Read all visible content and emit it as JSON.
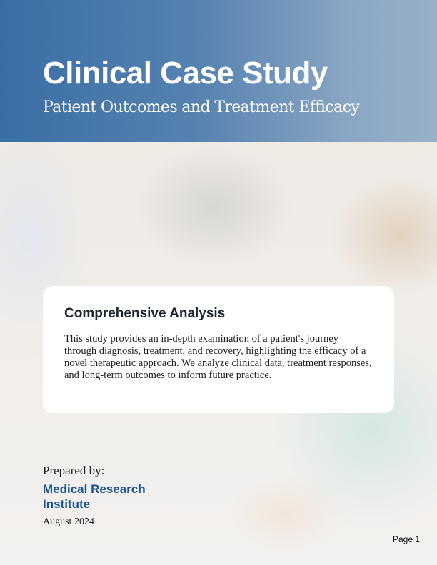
{
  "header": {
    "title": "Clinical Case Study",
    "subtitle": "Patient Outcomes and Treatment Efficacy"
  },
  "card": {
    "heading": "Comprehensive Analysis",
    "body": "This study provides an in-depth examination of a patient's journey through diagnosis, treatment, and recovery, highlighting the efficacy of a novel therapeutic approach. We analyze clinical data, treatment responses, and long-term outcomes to inform future practice."
  },
  "footer": {
    "prepared_label": "Prepared by:",
    "organization": "Medical Research Institute",
    "date": "August 2024",
    "page": "Page 1"
  },
  "colors": {
    "header": "#3a6ea5",
    "accent": "#1a5696"
  }
}
